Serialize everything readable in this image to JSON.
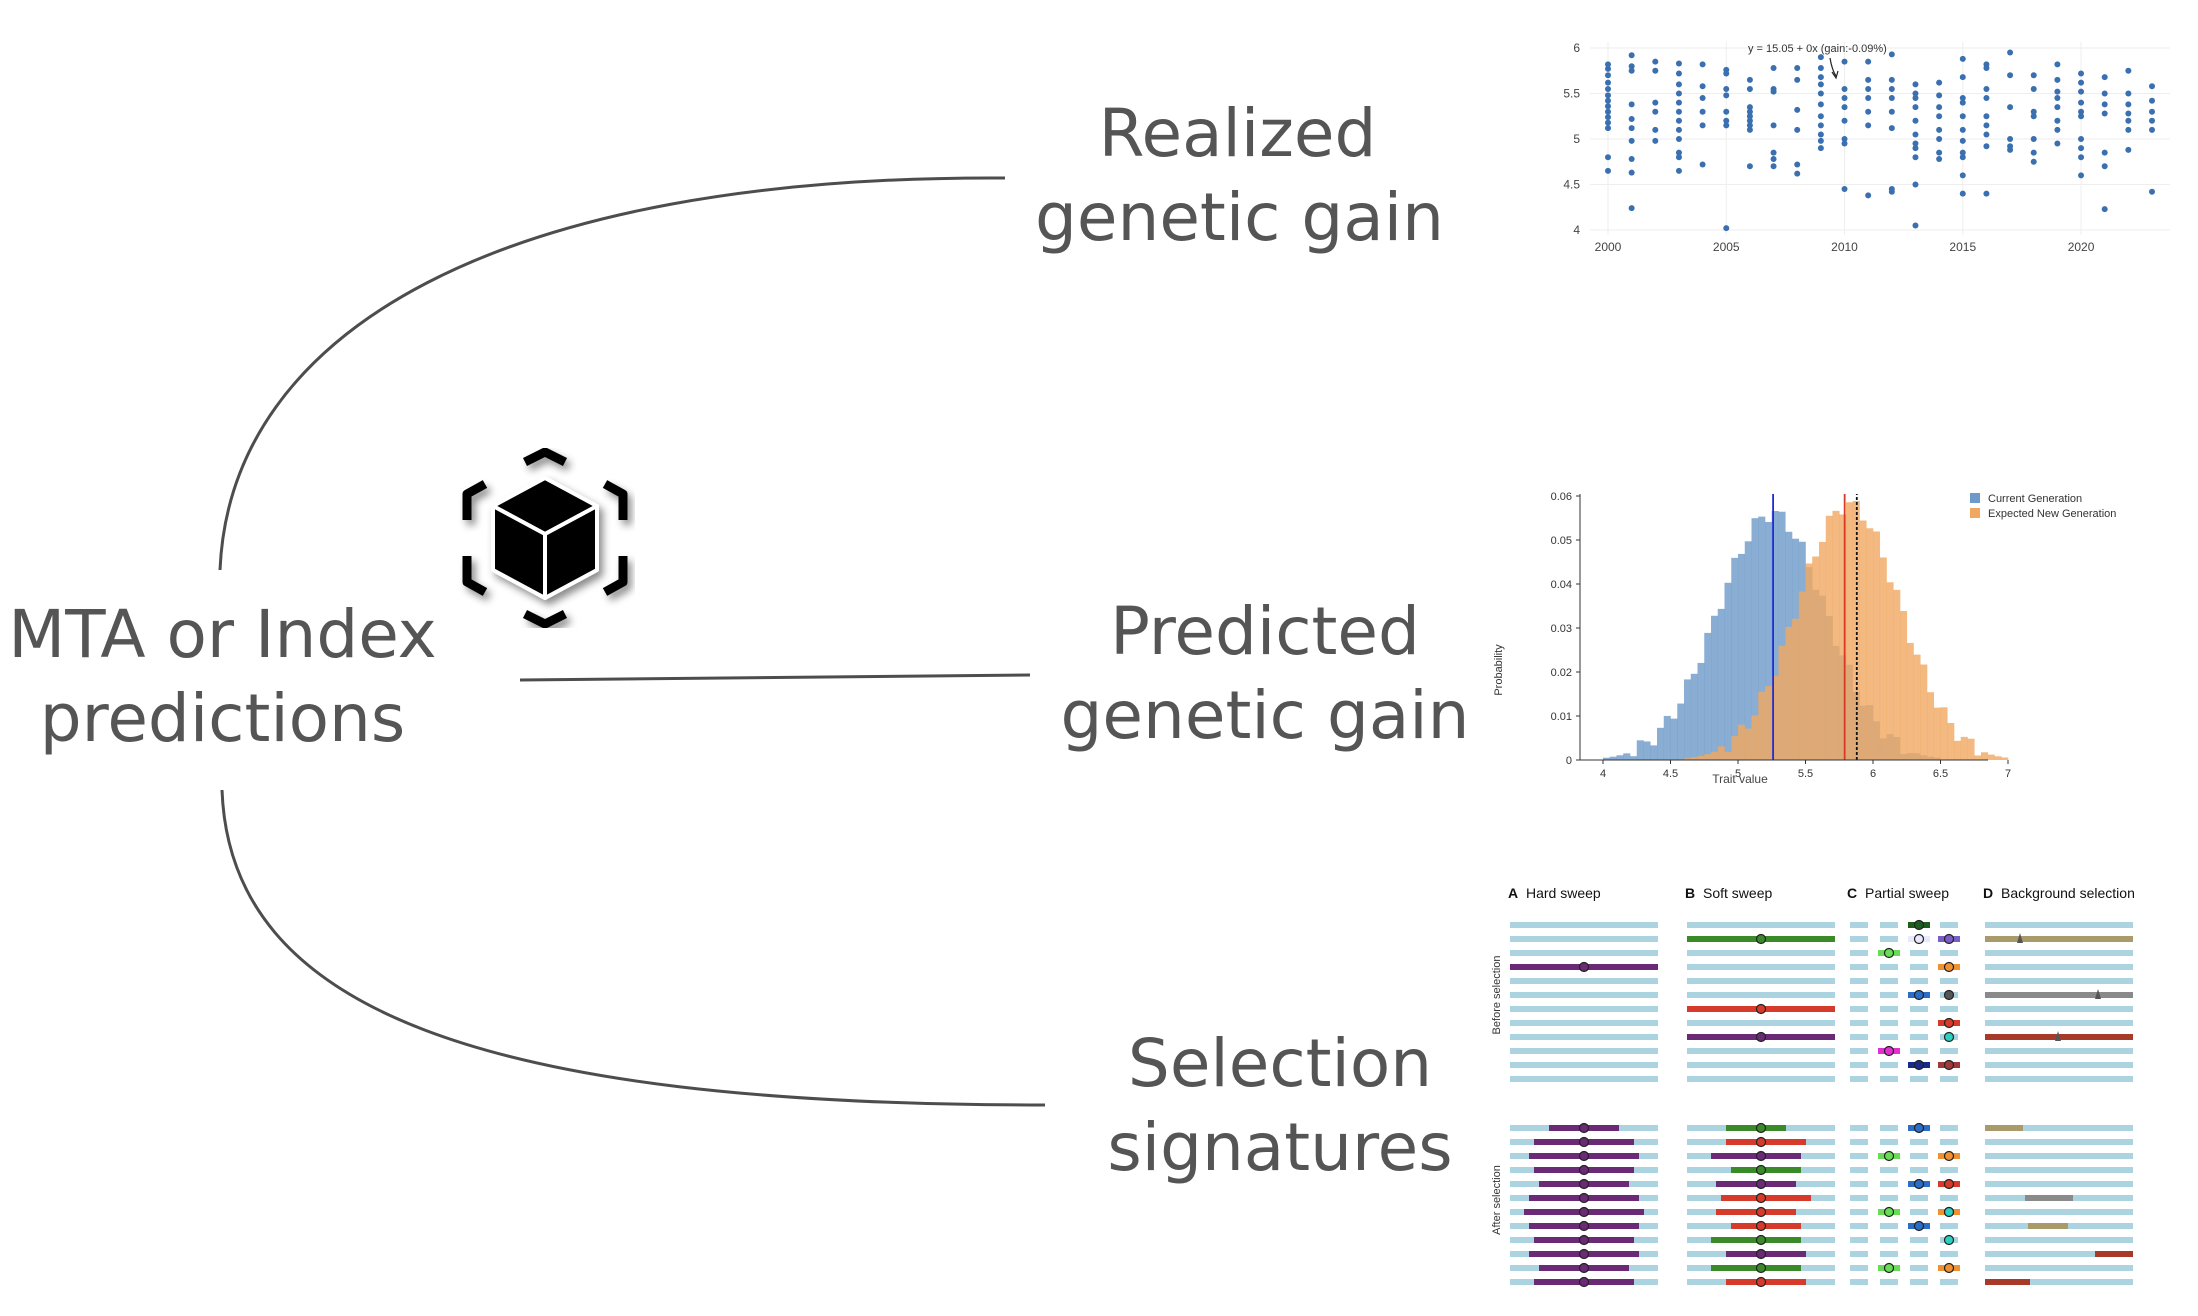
{
  "main_label": {
    "line1": "MTA or Index",
    "line2": "predictions"
  },
  "branches": [
    {
      "line1": "Realized",
      "line2": "genetic gain"
    },
    {
      "line1": "Predicted",
      "line2": "genetic gain"
    },
    {
      "line1": "Selection",
      "line2": "signatures"
    }
  ],
  "icon": "cube-icon",
  "colors": {
    "text": "#555555",
    "connector": "#4d4d4d",
    "scatter": "#3a6fb0",
    "current": "#6d9ac8",
    "expected": "#f0a860",
    "haplotype": "#acd4e0"
  },
  "chart_data": [
    {
      "type": "scatter",
      "annotation": "y = 15.05 + 0x (gain:-0.09%)",
      "xlim": [
        2000,
        2023
      ],
      "ylim": [
        4,
        6
      ],
      "xticks": [
        "2000",
        "2005",
        "2010",
        "2015",
        "2020"
      ],
      "yticks": [
        "4",
        "4.5",
        "5",
        "5.5",
        "6"
      ],
      "points": [
        [
          2000,
          5.82
        ],
        [
          2000,
          5.77
        ],
        [
          2000,
          5.7
        ],
        [
          2000,
          5.62
        ],
        [
          2000,
          5.55
        ],
        [
          2000,
          5.48
        ],
        [
          2000,
          5.42
        ],
        [
          2000,
          5.36
        ],
        [
          2000,
          5.3
        ],
        [
          2000,
          5.24
        ],
        [
          2000,
          5.18
        ],
        [
          2000,
          5.12
        ],
        [
          2000,
          4.8
        ],
        [
          2000,
          4.65
        ],
        [
          2001,
          5.92
        ],
        [
          2001,
          5.8
        ],
        [
          2001,
          5.75
        ],
        [
          2001,
          5.38
        ],
        [
          2001,
          5.22
        ],
        [
          2001,
          5.12
        ],
        [
          2001,
          4.98
        ],
        [
          2001,
          4.78
        ],
        [
          2001,
          4.63
        ],
        [
          2001,
          4.24
        ],
        [
          2002,
          5.85
        ],
        [
          2002,
          5.75
        ],
        [
          2002,
          5.4
        ],
        [
          2002,
          5.3
        ],
        [
          2002,
          5.1
        ],
        [
          2002,
          4.98
        ],
        [
          2003,
          5.83
        ],
        [
          2003,
          5.72
        ],
        [
          2003,
          5.6
        ],
        [
          2003,
          5.5
        ],
        [
          2003,
          5.4
        ],
        [
          2003,
          5.3
        ],
        [
          2003,
          5.2
        ],
        [
          2003,
          5.1
        ],
        [
          2003,
          5.0
        ],
        [
          2003,
          4.85
        ],
        [
          2003,
          4.8
        ],
        [
          2003,
          4.65
        ],
        [
          2004,
          5.82
        ],
        [
          2004,
          5.58
        ],
        [
          2004,
          5.45
        ],
        [
          2004,
          5.3
        ],
        [
          2004,
          5.15
        ],
        [
          2004,
          4.72
        ],
        [
          2005,
          5.76
        ],
        [
          2005,
          5.72
        ],
        [
          2005,
          5.55
        ],
        [
          2005,
          5.48
        ],
        [
          2005,
          5.3
        ],
        [
          2005,
          5.2
        ],
        [
          2005,
          5.15
        ],
        [
          2005,
          4.02
        ],
        [
          2006,
          5.65
        ],
        [
          2006,
          5.55
        ],
        [
          2006,
          5.35
        ],
        [
          2006,
          5.3
        ],
        [
          2006,
          5.25
        ],
        [
          2006,
          5.2
        ],
        [
          2006,
          5.15
        ],
        [
          2006,
          5.1
        ],
        [
          2006,
          4.7
        ],
        [
          2007,
          5.78
        ],
        [
          2007,
          5.55
        ],
        [
          2007,
          5.52
        ],
        [
          2007,
          5.15
        ],
        [
          2007,
          4.85
        ],
        [
          2007,
          4.78
        ],
        [
          2007,
          4.7
        ],
        [
          2008,
          5.78
        ],
        [
          2008,
          5.65
        ],
        [
          2008,
          5.32
        ],
        [
          2008,
          5.1
        ],
        [
          2008,
          4.72
        ],
        [
          2008,
          4.62
        ],
        [
          2009,
          5.9
        ],
        [
          2009,
          5.78
        ],
        [
          2009,
          5.68
        ],
        [
          2009,
          5.6
        ],
        [
          2009,
          5.5
        ],
        [
          2009,
          5.38
        ],
        [
          2009,
          5.25
        ],
        [
          2009,
          5.15
        ],
        [
          2009,
          5.05
        ],
        [
          2009,
          4.98
        ],
        [
          2009,
          4.9
        ],
        [
          2010,
          5.85
        ],
        [
          2010,
          5.55
        ],
        [
          2010,
          5.45
        ],
        [
          2010,
          5.35
        ],
        [
          2010,
          5.2
        ],
        [
          2010,
          5.0
        ],
        [
          2010,
          4.95
        ],
        [
          2010,
          4.45
        ],
        [
          2011,
          5.85
        ],
        [
          2011,
          5.65
        ],
        [
          2011,
          5.55
        ],
        [
          2011,
          5.45
        ],
        [
          2011,
          5.3
        ],
        [
          2011,
          5.15
        ],
        [
          2011,
          4.38
        ],
        [
          2012,
          5.93
        ],
        [
          2012,
          5.65
        ],
        [
          2012,
          5.55
        ],
        [
          2012,
          5.45
        ],
        [
          2012,
          5.3
        ],
        [
          2012,
          5.12
        ],
        [
          2012,
          4.45
        ],
        [
          2012,
          4.42
        ],
        [
          2013,
          5.6
        ],
        [
          2013,
          5.5
        ],
        [
          2013,
          5.45
        ],
        [
          2013,
          5.35
        ],
        [
          2013,
          5.2
        ],
        [
          2013,
          5.05
        ],
        [
          2013,
          4.95
        ],
        [
          2013,
          4.9
        ],
        [
          2013,
          4.8
        ],
        [
          2013,
          4.5
        ],
        [
          2013,
          4.05
        ],
        [
          2014,
          5.62
        ],
        [
          2014,
          5.48
        ],
        [
          2014,
          5.35
        ],
        [
          2014,
          5.25
        ],
        [
          2014,
          5.1
        ],
        [
          2014,
          5.0
        ],
        [
          2014,
          4.85
        ],
        [
          2014,
          4.78
        ],
        [
          2015,
          5.88
        ],
        [
          2015,
          5.68
        ],
        [
          2015,
          5.45
        ],
        [
          2015,
          5.4
        ],
        [
          2015,
          5.25
        ],
        [
          2015,
          5.1
        ],
        [
          2015,
          4.98
        ],
        [
          2015,
          4.85
        ],
        [
          2015,
          4.8
        ],
        [
          2015,
          4.6
        ],
        [
          2015,
          4.4
        ],
        [
          2016,
          5.82
        ],
        [
          2016,
          5.78
        ],
        [
          2016,
          5.55
        ],
        [
          2016,
          5.45
        ],
        [
          2016,
          5.25
        ],
        [
          2016,
          5.15
        ],
        [
          2016,
          5.05
        ],
        [
          2016,
          4.92
        ],
        [
          2016,
          4.4
        ],
        [
          2017,
          5.95
        ],
        [
          2017,
          5.7
        ],
        [
          2017,
          5.35
        ],
        [
          2017,
          5.0
        ],
        [
          2017,
          4.92
        ],
        [
          2017,
          4.88
        ],
        [
          2018,
          5.7
        ],
        [
          2018,
          5.55
        ],
        [
          2018,
          5.3
        ],
        [
          2018,
          5.25
        ],
        [
          2018,
          5.0
        ],
        [
          2018,
          4.85
        ],
        [
          2018,
          4.75
        ],
        [
          2019,
          5.82
        ],
        [
          2019,
          5.65
        ],
        [
          2019,
          5.52
        ],
        [
          2019,
          5.45
        ],
        [
          2019,
          5.35
        ],
        [
          2019,
          5.2
        ],
        [
          2019,
          5.1
        ],
        [
          2019,
          4.95
        ],
        [
          2020,
          5.72
        ],
        [
          2020,
          5.62
        ],
        [
          2020,
          5.52
        ],
        [
          2020,
          5.4
        ],
        [
          2020,
          5.3
        ],
        [
          2020,
          5.25
        ],
        [
          2020,
          5.0
        ],
        [
          2020,
          4.9
        ],
        [
          2020,
          4.8
        ],
        [
          2020,
          4.6
        ],
        [
          2021,
          5.68
        ],
        [
          2021,
          5.5
        ],
        [
          2021,
          5.38
        ],
        [
          2021,
          5.28
        ],
        [
          2021,
          4.85
        ],
        [
          2021,
          4.7
        ],
        [
          2021,
          4.23
        ],
        [
          2022,
          5.75
        ],
        [
          2022,
          5.5
        ],
        [
          2022,
          5.38
        ],
        [
          2022,
          5.28
        ],
        [
          2022,
          5.2
        ],
        [
          2022,
          5.1
        ],
        [
          2022,
          4.88
        ],
        [
          2023,
          5.58
        ],
        [
          2023,
          5.42
        ],
        [
          2023,
          5.3
        ],
        [
          2023,
          5.2
        ],
        [
          2023,
          5.1
        ],
        [
          2023,
          4.42
        ]
      ]
    },
    {
      "type": "histogram",
      "xlabel": "Trait value",
      "ylabel": "Probability",
      "xlim": [
        4,
        7.2
      ],
      "ylim": [
        0,
        0.06
      ],
      "xticks": [
        "4",
        "4.5",
        "5",
        "5.5",
        "6",
        "6.5",
        "7"
      ],
      "yticks": [
        "0",
        "0.01",
        "0.02",
        "0.03",
        "0.04",
        "0.05",
        "0.06"
      ],
      "legend_position": "top-right",
      "series": [
        {
          "name": "Current Generation",
          "mean": 5.25,
          "sd": 0.4,
          "peak": 0.056
        },
        {
          "name": "Expected New Generation",
          "mean": 5.82,
          "sd": 0.38,
          "peak": 0.058
        }
      ],
      "vlines": [
        5.26,
        5.79,
        5.88
      ]
    },
    {
      "type": "diagram",
      "panels": [
        {
          "letter": "A",
          "title": "Hard sweep"
        },
        {
          "letter": "B",
          "title": "Soft sweep"
        },
        {
          "letter": "C",
          "title": "Partial sweep"
        },
        {
          "letter": "D",
          "title": "Background selection"
        }
      ],
      "row_labels": [
        "Before selection",
        "After selection"
      ]
    }
  ]
}
